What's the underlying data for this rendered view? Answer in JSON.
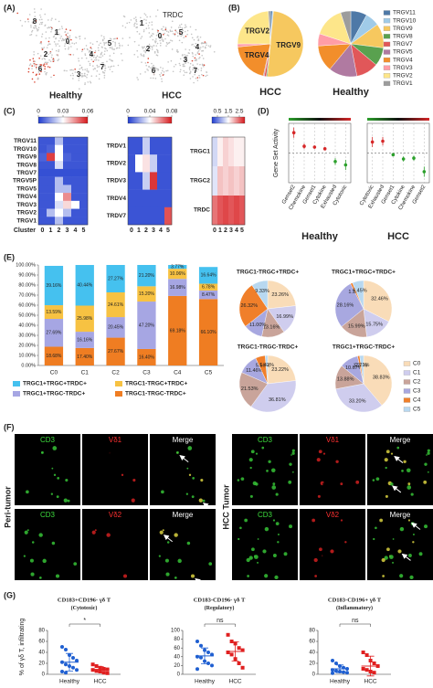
{
  "panel_labels": [
    "(A)",
    "(B)",
    "(C)",
    "(D)",
    "(E)",
    "(F)",
    "(G)"
  ],
  "tsne": {
    "title": "TRDC",
    "plots": [
      {
        "name": "Healthy",
        "clusters": [
          "8",
          "1",
          "0",
          "2",
          "4",
          "5",
          "6",
          "3",
          "7"
        ]
      },
      {
        "name": "HCC",
        "clusters": [
          "1",
          "0",
          "2",
          "3",
          "7",
          "6",
          "5",
          "4"
        ]
      }
    ]
  },
  "chart_data": [
    {
      "type": "pie",
      "categories": [
        "TRGV11",
        "TRGV10",
        "TRGV9",
        "TRGV8",
        "TRGV7",
        "TRGV5",
        "TRGV4",
        "TRGV3",
        "TRGV2",
        "TRGV1"
      ],
      "colors": [
        "#4e79a7",
        "#a0cbe8",
        "#f6c85f",
        "#59a14f",
        "#e15759",
        "#b07aa1",
        "#f28e2b",
        "#ff9da7",
        "#fde68a",
        "#9c9c9c"
      ],
      "pies": [
        {
          "name": "HCC",
          "values": [
            1,
            0.5,
            50,
            0.5,
            1,
            0.5,
            20,
            1.5,
            24,
            1
          ],
          "label_slices": true
        },
        {
          "name": "Healthy",
          "values": [
            8,
            7,
            12,
            9,
            11,
            14,
            13,
            6,
            15,
            5
          ],
          "label_slices": false
        }
      ]
    },
    {
      "type": "heatmap",
      "x_label": "Cluster",
      "rows": [
        "TRGV11",
        "TRGV10",
        "TRGV9",
        "TRGV8",
        "TRGV7",
        "TRGV5P",
        "TRGV5",
        "TRGV4",
        "TRGV3",
        "TRGV2",
        "TRGV1"
      ],
      "columns": [
        0,
        1,
        2,
        3,
        4,
        5
      ],
      "values": [
        [
          0.004,
          0.004,
          0.02,
          0.004,
          0.004,
          0.004
        ],
        [
          0.004,
          0.006,
          0.03,
          0.004,
          0.004,
          0.004
        ],
        [
          0.006,
          0.055,
          0.03,
          0.006,
          0.004,
          0.004
        ],
        [
          0.004,
          0.004,
          0.025,
          0.004,
          0.004,
          0.004
        ],
        [
          0.003,
          0.003,
          0.003,
          0.003,
          0.003,
          0.003
        ],
        [
          0.004,
          0.004,
          0.02,
          0.004,
          0.004,
          0.004
        ],
        [
          0.004,
          0.004,
          0.02,
          0.02,
          0.004,
          0.004
        ],
        [
          0.004,
          0.004,
          0.03,
          0.045,
          0.004,
          0.004
        ],
        [
          0.004,
          0.004,
          0.025,
          0.035,
          0.03,
          0.004
        ],
        [
          0.004,
          0.02,
          0.03,
          0.02,
          0.004,
          0.004
        ],
        [
          0.004,
          0.004,
          0.02,
          0.004,
          0.004,
          0.004
        ]
      ],
      "clim": [
        0,
        0.06
      ],
      "cticks": [
        0,
        0.03,
        0.06
      ]
    },
    {
      "type": "heatmap",
      "rows": [
        "TRDV1",
        "TRDV2",
        "TRDV3",
        "TRDV4",
        "TRDV7"
      ],
      "columns": [
        0,
        1,
        2,
        3,
        4,
        5
      ],
      "values": [
        [
          0.005,
          0.005,
          0.03,
          0.005,
          0.005,
          0.005
        ],
        [
          0.005,
          0.04,
          0.045,
          0.03,
          0.005,
          0.005
        ],
        [
          0.005,
          0.005,
          0.03,
          0.075,
          0.005,
          0.005
        ],
        [
          0.005,
          0.005,
          0.005,
          0.005,
          0.005,
          0.005
        ],
        [
          0.005,
          0.005,
          0.005,
          0.005,
          0.005,
          0.07
        ]
      ],
      "clim": [
        0,
        0.08
      ],
      "cticks": [
        0,
        0.04,
        0.08
      ]
    },
    {
      "type": "heatmap",
      "rows": [
        "TRGC1",
        "TRGC2",
        "TRDC"
      ],
      "columns": [
        0,
        1,
        2,
        3,
        4,
        5
      ],
      "values": [
        [
          1.2,
          1.6,
          1.8,
          1.7,
          1.6,
          1.6
        ],
        [
          1.3,
          1.9,
          1.8,
          1.9,
          1.8,
          1.9
        ],
        [
          2.4,
          2.6,
          2.7,
          2.6,
          2.7,
          2.6
        ]
      ],
      "clim": [
        0,
        3
      ],
      "cticks": [
        0.5,
        1.5,
        2.5
      ]
    },
    {
      "type": "bar",
      "stacked": true,
      "categories": [
        "C0",
        "C1",
        "C2",
        "C3",
        "C4",
        "C5"
      ],
      "ylim": [
        0,
        100
      ],
      "yticks": [
        {
          "value": 0,
          "label": "0.00%"
        },
        {
          "value": 10,
          "label": "10.00%"
        },
        {
          "value": 20,
          "label": "20.00%"
        },
        {
          "value": 30,
          "label": "30.00%"
        },
        {
          "value": 40,
          "label": "40.00%"
        },
        {
          "value": 50,
          "label": "50.00%"
        },
        {
          "value": 60,
          "label": "60.00%"
        },
        {
          "value": 70,
          "label": "70.00%"
        },
        {
          "value": 80,
          "label": "80.00%"
        },
        {
          "value": 90,
          "label": "90.00%"
        },
        {
          "value": 100,
          "label": "100.00%"
        }
      ],
      "series": [
        {
          "name": "TRGC1-TRGC-TRDC+",
          "color": "#ef7d22",
          "values": [
            18.68,
            17.4,
            27.67,
            16.4,
            69.18,
            66.1
          ],
          "value_labels": [
            "18.68%",
            "17.40%",
            "27.67%",
            "16.40%",
            "69.18%",
            "66.10%"
          ]
        },
        {
          "name": "TRGC1+TRGC-TRDC+",
          "color": "#a6a6e3",
          "values": [
            27.69,
            16.16,
            20.45,
            47.2,
            16.98,
            8.47
          ],
          "value_labels": [
            "27.69%",
            "16.16%",
            "20.45%",
            "47.20%",
            "16.98%",
            "8.47%"
          ]
        },
        {
          "name": "TRGC1-TRGC+TRDC+",
          "color": "#f7c242",
          "values": [
            13.59,
            25.98,
            24.61,
            15.2,
            10.06,
            6.78
          ],
          "value_labels": [
            "13.59%",
            "25.98%",
            "24.61%",
            "15.20%",
            "10.06%",
            "6.78%"
          ]
        },
        {
          "name": "TRGC1+TRGC+TRDC+",
          "color": "#45c1ef",
          "values": [
            39.16,
            40.44,
            27.27,
            21.2,
            3.77,
            16.64
          ],
          "value_labels": [
            "39.16%",
            "40.44%",
            "27.27%",
            "21.20%",
            "3.77%",
            "16.64%"
          ]
        }
      ]
    },
    {
      "type": "pie",
      "categories": [
        "C0",
        "C1",
        "C2",
        "C3",
        "C4",
        "C5"
      ],
      "colors": [
        "#f9dcb8",
        "#cfcdee",
        "#c9a49a",
        "#a8a8e0",
        "#f07f2a",
        "#b8d8f0"
      ],
      "pies": [
        {
          "name": "TRGC1-TRGC+TRDC+",
          "values": [
            23.26,
            16.99,
            13.16,
            11.0,
            26.32,
            9.33
          ],
          "value_labels": [
            "23.26%",
            "16.99%",
            "13.16%",
            "11.00%",
            "26.32%",
            "9.33%"
          ]
        },
        {
          "name": "TRGC1+TRGC+TRDC+",
          "values": [
            32.46,
            15.75,
            15.99,
            28.16,
            1.19,
            6.45
          ],
          "value_labels": [
            "32.46%",
            "15.75%",
            "15.99%",
            "28.16%",
            "1.19%",
            "6.45%"
          ]
        },
        {
          "name": "TRGC1-TRGC-TRDC+",
          "values": [
            23.22,
            36.81,
            21.53,
            11.46,
            5.56,
            1.42
          ],
          "value_labels": [
            "23.22%",
            "36.81%",
            "21.53%",
            "11.46%",
            "5.56%",
            "1.42%"
          ]
        },
        {
          "name": "TRGC1+TRGC-TRDC+",
          "values": [
            38.83,
            33.2,
            13.88,
            10.67,
            1.21,
            2.21
          ],
          "value_labels": [
            "38.83%",
            "33.20%",
            "13.88%",
            "10.67%",
            "1.21%",
            "2.21%"
          ]
        }
      ]
    },
    {
      "type": "errorbar",
      "y_label": "Gene Set Activity",
      "ylim": [
        -0.35,
        0.35
      ],
      "panels": [
        {
          "name": "Healthy",
          "categories": [
            "Genset2",
            "Chemokine",
            "Genset1",
            "Cytokine",
            "Exhausted",
            "Cytotoxic"
          ],
          "values": [
            0.24,
            0.08,
            0.07,
            0.05,
            -0.1,
            -0.14
          ],
          "errors": [
            0.06,
            0.03,
            0.02,
            0.01,
            0.04,
            0.06
          ],
          "colors": [
            "#d62728",
            "#d62728",
            "#d62728",
            "#d62728",
            "#2ca02c",
            "#2ca02c"
          ]
        },
        {
          "name": "HCC",
          "categories": [
            "Cytotoxic",
            "Exhausted",
            "Genset1",
            "Cytokine",
            "Chemokine",
            "Genset2"
          ],
          "values": [
            0.13,
            0.14,
            -0.02,
            -0.07,
            -0.06,
            -0.22
          ],
          "errors": [
            0.06,
            0.05,
            0.01,
            0.03,
            0.03,
            0.06
          ],
          "colors": [
            "#d62728",
            "#d62728",
            "#2ca02c",
            "#2ca02c",
            "#2ca02c",
            "#2ca02c"
          ]
        }
      ]
    },
    {
      "type": "strip",
      "y_label": "% of γδ T, infiltrating",
      "categories": [
        "Healthy",
        "HCC"
      ],
      "colors": [
        "#1f5fd1",
        "#e02020"
      ],
      "panels": [
        {
          "title": [
            "CD183+CD196- γδ T",
            "(Cytotoxic)"
          ],
          "significance": "*",
          "ylim": [
            0,
            80
          ],
          "yticks": [
            0,
            20,
            40,
            60,
            80
          ],
          "values": [
            [
              50,
              45,
              35,
              30,
              25,
              22,
              18,
              15,
              12,
              8,
              5,
              3
            ],
            [
              18,
              15,
              12,
              10,
              9,
              8,
              6,
              5,
              3,
              2
            ]
          ],
          "means": [
            22,
            9
          ],
          "sds": [
            16,
            5
          ]
        },
        {
          "title": [
            "CD183-CD196- γδ T",
            "(Regulatory)"
          ],
          "significance": "ns",
          "ylim": [
            0,
            100
          ],
          "yticks": [
            0,
            20,
            40,
            60,
            80,
            100
          ],
          "values": [
            [
              75,
              65,
              55,
              50,
              45,
              40,
              38,
              30,
              25,
              20,
              12
            ],
            [
              90,
              75,
              70,
              60,
              55,
              50,
              45,
              35,
              25,
              15
            ]
          ],
          "means": [
            42,
            52
          ],
          "sds": [
            18,
            22
          ]
        },
        {
          "title": [
            "CD183-CD196+ γδ T",
            "(Inflammatory)"
          ],
          "significance": "ns",
          "ylim": [
            0,
            80
          ],
          "yticks": [
            0,
            20,
            40,
            60,
            80
          ],
          "values": [
            [
              25,
              20,
              15,
              12,
              10,
              8,
              6,
              5,
              4,
              3,
              2
            ],
            [
              40,
              35,
              25,
              20,
              15,
              10,
              8,
              5,
              3
            ]
          ],
          "means": [
            10,
            15
          ],
          "sds": [
            7,
            18
          ]
        }
      ]
    }
  ],
  "microscopy": {
    "groups": [
      {
        "name": "Peri-tumor",
        "rows": [
          [
            "CD3",
            "Vδ1",
            "Merge"
          ],
          [
            "CD3",
            "Vδ2",
            "Merge"
          ]
        ]
      },
      {
        "name": "HCC Tumor",
        "rows": [
          [
            "CD3",
            "Vδ1",
            "Merge"
          ],
          [
            "CD3",
            "Vδ2",
            "Merge"
          ]
        ]
      }
    ]
  }
}
